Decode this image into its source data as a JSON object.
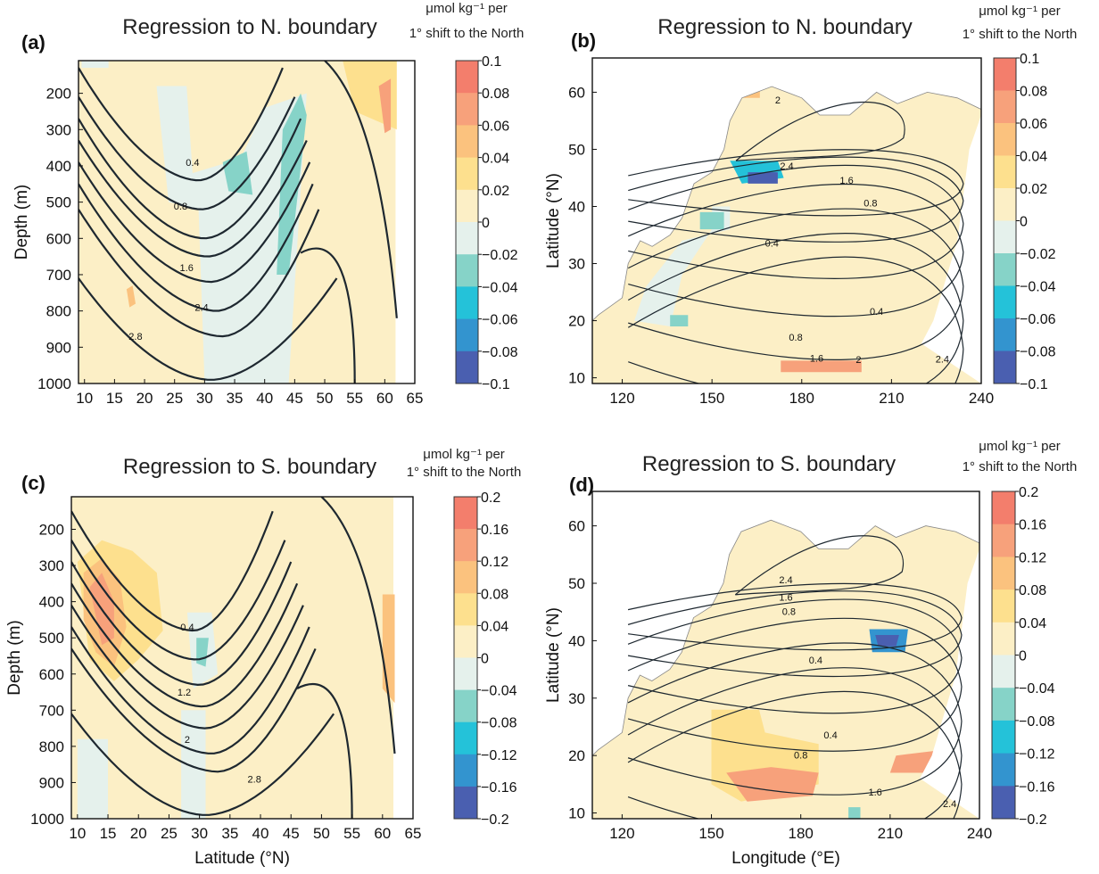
{
  "colors": {
    "plus": [
      "#fcefc6",
      "#fde08e",
      "#fbc27e",
      "#f7a17b",
      "#f37e6c"
    ],
    "minus": [
      "#e5f1ec",
      "#86d3c8",
      "#24c2d9",
      "#3394cf",
      "#4a5fb0"
    ],
    "land": "#ffffff",
    "contour": "#1e2830"
  },
  "panels": [
    {
      "label": "(a)",
      "title": "Regression to N. boundary",
      "units_line1": "μmol kg⁻¹ per",
      "units_line2": "1° shift to the North",
      "colorbar_ticks": [
        "0.1",
        "0.08",
        "0.06",
        "0.04",
        "0.02",
        "0",
        "−0.02",
        "−0.04",
        "−0.06",
        "−0.08",
        "−0.1"
      ],
      "contour_labels": [
        "0.4",
        "0.8",
        "1.6",
        "2.4",
        "2.8"
      ]
    },
    {
      "label": "(b)",
      "title": "Regression to N. boundary",
      "units_line1": "μmol kg⁻¹ per",
      "units_line2": "1° shift to the North",
      "colorbar_ticks": [
        "0.1",
        "0.08",
        "0.06",
        "0.04",
        "0.02",
        "0",
        "−0.02",
        "−0.04",
        "−0.06",
        "−0.08",
        "−0.1"
      ],
      "contour_labels": [
        "2",
        "2.4",
        "1.6",
        "0.8",
        "0.4",
        "0.4",
        "0.8",
        "1.6",
        "2",
        "2.4"
      ]
    },
    {
      "label": "(c)",
      "title": "Regression to S. boundary",
      "units_line1": "μmol kg⁻¹ per",
      "units_line2": "1° shift to the North",
      "colorbar_ticks": [
        "0.2",
        "0.16",
        "0.12",
        "0.08",
        "0.04",
        "0",
        "−0.04",
        "−0.08",
        "−0.12",
        "−0.16",
        "−0.2"
      ],
      "contour_labels": [
        "0.4",
        "1.2",
        "2",
        "2.8"
      ]
    },
    {
      "label": "(d)",
      "title": "Regression to S. boundary",
      "units_line1": "μmol kg⁻¹ per",
      "units_line2": "1° shift to the North",
      "colorbar_ticks": [
        "0.2",
        "0.16",
        "0.12",
        "0.08",
        "0.04",
        "0",
        "−0.04",
        "−0.08",
        "−0.12",
        "−0.16",
        "−0.2"
      ],
      "contour_labels": [
        "2.4",
        "1.6",
        "0.8",
        "0.4",
        "0.4",
        "0.8",
        "1.6",
        "2.4"
      ]
    }
  ],
  "chart_data": [
    {
      "type": "heatmap",
      "panel": "(a)",
      "title": "Regression to N. boundary",
      "xlabel": "",
      "ylabel": "Depth (m)",
      "xticks": [
        "10",
        "15",
        "20",
        "25",
        "30",
        "35",
        "40",
        "45",
        "50",
        "55",
        "60",
        "65"
      ],
      "yticks": [
        "200",
        "300",
        "400",
        "500",
        "600",
        "700",
        "800",
        "900",
        "1000"
      ],
      "xlim": [
        9,
        65
      ],
      "ylim": [
        1000,
        110
      ],
      "colorbar_range": [
        -0.1,
        0.1
      ],
      "contour_levels": [
        0.4,
        0.8,
        1.6,
        2.4,
        2.8
      ]
    },
    {
      "type": "heatmap",
      "panel": "(b)",
      "title": "Regression to N. boundary",
      "xlabel": "",
      "ylabel": "Latitude (°N)",
      "xticks": [
        "120",
        "150",
        "180",
        "210",
        "240"
      ],
      "yticks": [
        "10",
        "20",
        "30",
        "40",
        "50",
        "60"
      ],
      "xlim": [
        110,
        240
      ],
      "ylim": [
        9,
        66
      ],
      "colorbar_range": [
        -0.1,
        0.1
      ],
      "contour_levels": [
        0.4,
        0.8,
        1.6,
        2,
        2.4
      ]
    },
    {
      "type": "heatmap",
      "panel": "(c)",
      "title": "Regression to S. boundary",
      "xlabel": "Latitude (°N)",
      "ylabel": "Depth (m)",
      "xticks": [
        "10",
        "15",
        "20",
        "25",
        "30",
        "35",
        "40",
        "45",
        "50",
        "55",
        "60",
        "65"
      ],
      "yticks": [
        "200",
        "300",
        "400",
        "500",
        "600",
        "700",
        "800",
        "900",
        "1000"
      ],
      "xlim": [
        9,
        65
      ],
      "ylim": [
        1000,
        110
      ],
      "colorbar_range": [
        -0.2,
        0.2
      ],
      "contour_levels": [
        0.4,
        1.2,
        2,
        2.8
      ]
    },
    {
      "type": "heatmap",
      "panel": "(d)",
      "title": "Regression to S. boundary",
      "xlabel": "Longitude (°E)",
      "ylabel": "Latitude (°N)",
      "xticks": [
        "120",
        "150",
        "180",
        "210",
        "240"
      ],
      "yticks": [
        "10",
        "20",
        "30",
        "40",
        "50",
        "60"
      ],
      "xlim": [
        110,
        240
      ],
      "ylim": [
        9,
        66
      ],
      "colorbar_range": [
        -0.2,
        0.2
      ],
      "contour_levels": [
        0.4,
        0.8,
        1.6,
        2.4
      ]
    }
  ]
}
